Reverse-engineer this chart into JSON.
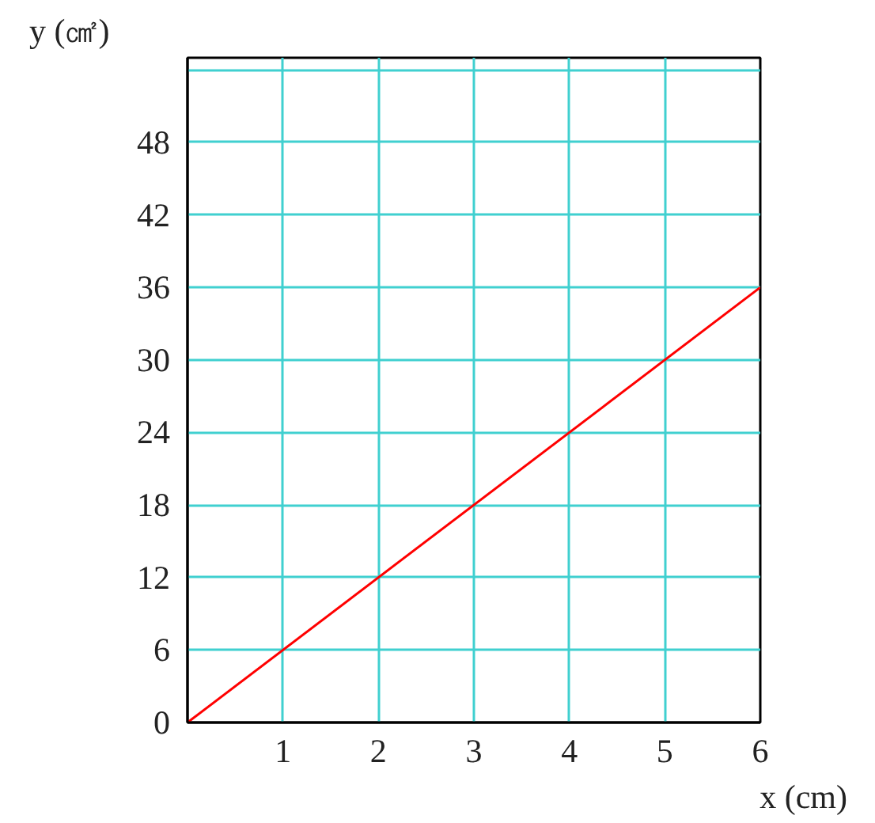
{
  "chart_data": {
    "type": "line",
    "xlabel": "x (cm)",
    "ylabel": "y (㎠)",
    "x": [
      0,
      6
    ],
    "series": [
      {
        "color": "#ff0000",
        "values": [
          0,
          36
        ]
      }
    ],
    "xlim": [
      0,
      6
    ],
    "ylim": [
      0,
      55
    ],
    "xticks": [
      1,
      2,
      3,
      4,
      5,
      6
    ],
    "yticks": [
      0,
      6,
      12,
      18,
      24,
      30,
      36,
      42,
      48,
      {
        "value": 54,
        "label": null
      }
    ],
    "grid": true,
    "marker": "none",
    "line_style": "solid"
  }
}
